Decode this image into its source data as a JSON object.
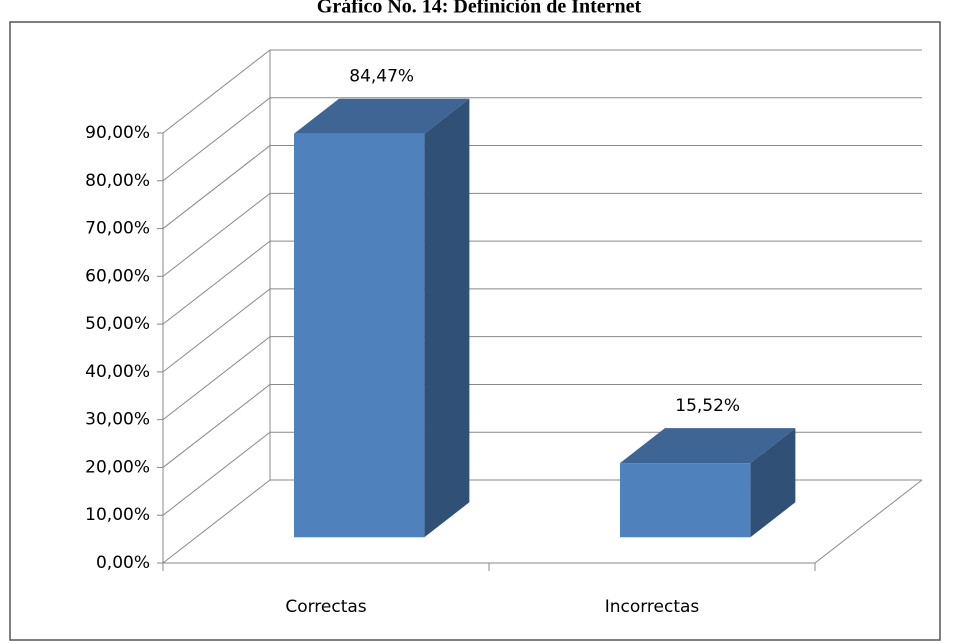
{
  "chart_data": {
    "type": "bar3d",
    "title": "Gráfico No. 14: Definición de Internet",
    "categories": [
      "Correctas",
      "Incorrectas"
    ],
    "values": [
      84.47,
      15.52
    ],
    "value_labels": [
      "84,47%",
      "15,52%"
    ],
    "color": "#4f81bd",
    "ylim": [
      0,
      90
    ],
    "yticks": [
      {
        "value": 0,
        "label": "0,00%"
      },
      {
        "value": 10,
        "label": "10,00%"
      },
      {
        "value": 20,
        "label": "20,00%"
      },
      {
        "value": 30,
        "label": "30,00%"
      },
      {
        "value": 40,
        "label": "40,00%"
      },
      {
        "value": 50,
        "label": "50,00%"
      },
      {
        "value": 60,
        "label": "60,00%"
      },
      {
        "value": 70,
        "label": "70,00%"
      },
      {
        "value": 80,
        "label": "80,00%"
      },
      {
        "value": 90,
        "label": "90,00%"
      }
    ],
    "grid": true
  }
}
